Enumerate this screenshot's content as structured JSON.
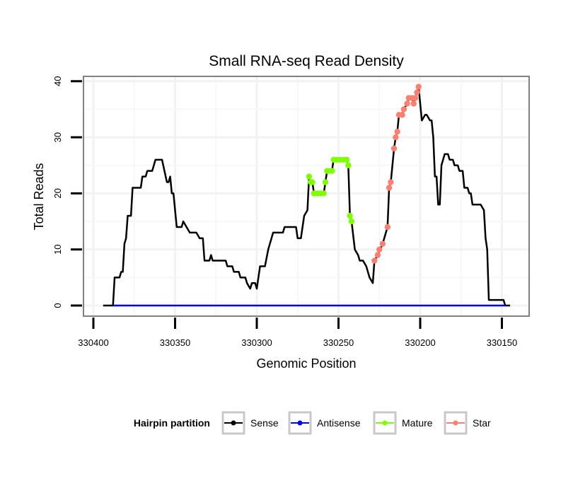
{
  "chart_data": {
    "type": "line",
    "title": "Small RNA-seq Read Density",
    "xlabel": "Genomic Position",
    "ylabel": "Total Reads",
    "xlim": [
      330406,
      330140
    ],
    "ylim": [
      -2,
      42
    ],
    "x_reversed": true,
    "xticks": [
      330400,
      330350,
      330300,
      330250,
      330200,
      330150
    ],
    "yticks": [
      0,
      10,
      20,
      30,
      40
    ],
    "grid": true,
    "legend": {
      "title": "Hairpin partition",
      "placement": "bottom",
      "entries": [
        "Sense",
        "Antisense",
        "Mature",
        "Star"
      ]
    },
    "colors": {
      "Sense": "#000000",
      "Antisense": "#0000ff",
      "Mature": "#7fff00",
      "Star": "#fa8072"
    },
    "series": [
      {
        "name": "Sense",
        "points": [
          [
            330394,
            0
          ],
          [
            330388,
            0
          ],
          [
            330387,
            5
          ],
          [
            330384,
            5
          ],
          [
            330383,
            6
          ],
          [
            330382,
            6
          ],
          [
            330381,
            11
          ],
          [
            330380,
            12
          ],
          [
            330379,
            16
          ],
          [
            330377,
            16
          ],
          [
            330376,
            21
          ],
          [
            330371,
            21
          ],
          [
            330370,
            23
          ],
          [
            330368,
            23
          ],
          [
            330367,
            24
          ],
          [
            330364,
            24
          ],
          [
            330362,
            26
          ],
          [
            330358,
            26
          ],
          [
            330355,
            22
          ],
          [
            330354,
            22
          ],
          [
            330353,
            23
          ],
          [
            330352,
            20
          ],
          [
            330351,
            20
          ],
          [
            330349,
            14
          ],
          [
            330346,
            14
          ],
          [
            330345,
            15
          ],
          [
            330343,
            14
          ],
          [
            330341,
            13
          ],
          [
            330337,
            13
          ],
          [
            330335,
            12
          ],
          [
            330333,
            12
          ],
          [
            330332,
            8
          ],
          [
            330329,
            8
          ],
          [
            330328,
            9
          ],
          [
            330327,
            8
          ],
          [
            330319,
            8
          ],
          [
            330318,
            7
          ],
          [
            330315,
            7
          ],
          [
            330314,
            6
          ],
          [
            330311,
            6
          ],
          [
            330310,
            5
          ],
          [
            330307,
            5
          ],
          [
            330306,
            4
          ],
          [
            330304,
            3
          ],
          [
            330303,
            4
          ],
          [
            330301,
            4
          ],
          [
            330300,
            3
          ],
          [
            330298,
            7
          ],
          [
            330295,
            7
          ],
          [
            330293,
            10
          ],
          [
            330291,
            12
          ],
          [
            330290,
            13
          ],
          [
            330284,
            13
          ],
          [
            330283,
            14
          ],
          [
            330276,
            14
          ],
          [
            330275,
            12
          ],
          [
            330273,
            12
          ],
          [
            330272,
            14
          ],
          [
            330271,
            16
          ],
          [
            330269,
            17
          ],
          [
            330268,
            23
          ],
          [
            330267,
            22
          ],
          [
            330266,
            22
          ],
          [
            330265,
            20
          ],
          [
            330259,
            20
          ],
          [
            330258,
            22
          ],
          [
            330257,
            24
          ],
          [
            330254,
            24
          ],
          [
            330253,
            26
          ],
          [
            330245,
            26
          ],
          [
            330244,
            25
          ],
          [
            330243,
            16
          ],
          [
            330242,
            15
          ],
          [
            330240,
            10
          ],
          [
            330238,
            9
          ],
          [
            330237,
            8
          ],
          [
            330235,
            8
          ],
          [
            330233,
            7
          ],
          [
            330232,
            6
          ],
          [
            330231,
            5
          ],
          [
            330229,
            4
          ],
          [
            330228,
            8
          ],
          [
            330226,
            9
          ],
          [
            330223,
            11
          ],
          [
            330222,
            12
          ],
          [
            330220,
            14
          ],
          [
            330219,
            21
          ],
          [
            330218,
            22
          ],
          [
            330216,
            28
          ],
          [
            330215,
            30
          ],
          [
            330214,
            31
          ],
          [
            330213,
            34
          ],
          [
            330211,
            34
          ],
          [
            330210,
            35
          ],
          [
            330208,
            36
          ],
          [
            330207,
            37
          ],
          [
            330205,
            37
          ],
          [
            330204,
            36
          ],
          [
            330203,
            37
          ],
          [
            330202,
            38
          ],
          [
            330201,
            39
          ],
          [
            330199,
            33
          ],
          [
            330197,
            34
          ],
          [
            330196,
            34
          ],
          [
            330194,
            33
          ],
          [
            330193,
            33
          ],
          [
            330192,
            30
          ],
          [
            330191,
            23
          ],
          [
            330190,
            23
          ],
          [
            330189,
            18
          ],
          [
            330188,
            18
          ],
          [
            330187,
            25
          ],
          [
            330185,
            27
          ],
          [
            330183,
            27
          ],
          [
            330182,
            26
          ],
          [
            330180,
            26
          ],
          [
            330179,
            25
          ],
          [
            330177,
            25
          ],
          [
            330176,
            24
          ],
          [
            330174,
            24
          ],
          [
            330173,
            21
          ],
          [
            330171,
            21
          ],
          [
            330170,
            20
          ],
          [
            330169,
            20
          ],
          [
            330168,
            18
          ],
          [
            330163,
            18
          ],
          [
            330161,
            17
          ],
          [
            330160,
            12
          ],
          [
            330159,
            10
          ],
          [
            330158,
            1
          ],
          [
            330149,
            1
          ],
          [
            330148,
            0
          ],
          [
            330145,
            0
          ]
        ]
      },
      {
        "name": "Antisense",
        "points": [
          [
            330388,
            0
          ],
          [
            330148,
            0
          ]
        ]
      },
      {
        "name": "Mature",
        "points": [
          [
            330268,
            23
          ],
          [
            330267,
            22
          ],
          [
            330266,
            22
          ],
          [
            330265,
            20
          ],
          [
            330263,
            20
          ],
          [
            330261,
            20
          ],
          [
            330259,
            20
          ],
          [
            330258,
            22
          ],
          [
            330257,
            24
          ],
          [
            330256,
            24
          ],
          [
            330254,
            24
          ],
          [
            330253,
            26
          ],
          [
            330251,
            26
          ],
          [
            330249,
            26
          ],
          [
            330247,
            26
          ],
          [
            330245,
            26
          ],
          [
            330244,
            25
          ],
          [
            330243,
            16
          ],
          [
            330242,
            15
          ]
        ]
      },
      {
        "name": "Star",
        "points": [
          [
            330228,
            8
          ],
          [
            330226,
            9
          ],
          [
            330225,
            10
          ],
          [
            330223,
            11
          ],
          [
            330220,
            14
          ],
          [
            330219,
            21
          ],
          [
            330218,
            22
          ],
          [
            330216,
            28
          ],
          [
            330215,
            30
          ],
          [
            330214,
            31
          ],
          [
            330213,
            34
          ],
          [
            330211,
            34
          ],
          [
            330210,
            35
          ],
          [
            330208,
            36
          ],
          [
            330207,
            37
          ],
          [
            330205,
            37
          ],
          [
            330204,
            36
          ],
          [
            330203,
            37
          ],
          [
            330202,
            38
          ],
          [
            330201,
            39
          ]
        ]
      }
    ]
  }
}
